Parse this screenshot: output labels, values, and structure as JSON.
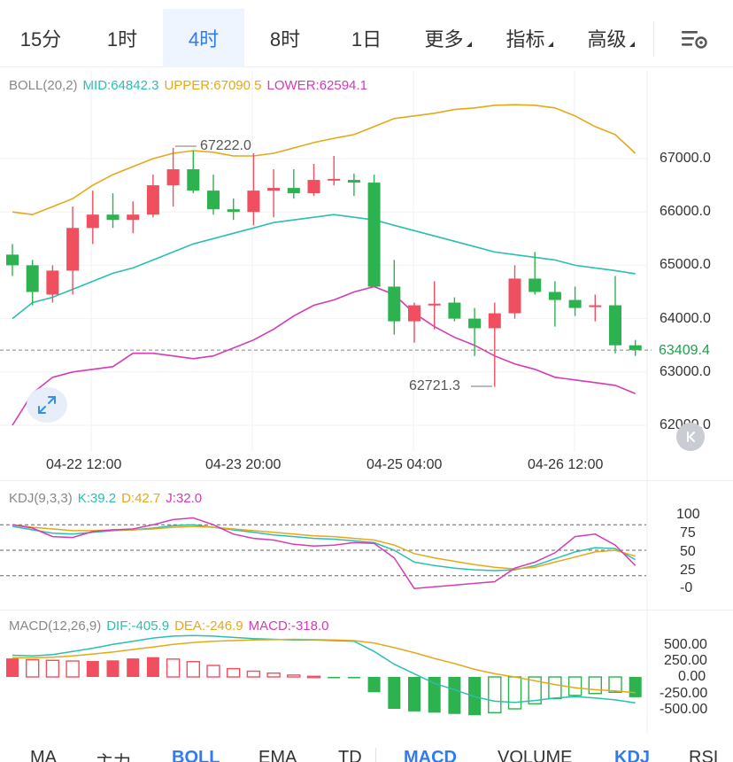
{
  "timeframes": {
    "tabs": [
      {
        "label": "15分"
      },
      {
        "label": "1时"
      },
      {
        "label": "4时"
      },
      {
        "label": "8时"
      },
      {
        "label": "1日"
      },
      {
        "label": "更多"
      },
      {
        "label": "指标"
      },
      {
        "label": "高级"
      }
    ],
    "active_index": 2
  },
  "boll_legend": {
    "name": "BOLL(20,2)",
    "mid": "MID:64842.3",
    "upper": "UPPER:67090.5",
    "lower": "LOWER:62594.1"
  },
  "price_axis": [
    "67000.0",
    "66000.0",
    "65000.0",
    "64000.0",
    "63000.0",
    "62000.0"
  ],
  "current_price": "63409.4",
  "annotations": {
    "high": "67222.0",
    "low": "62721.3"
  },
  "time_axis": [
    "04-22 12:00",
    "04-23 20:00",
    "04-25 04:00",
    "04-26 12:00"
  ],
  "kdj_legend": {
    "name": "KDJ(9,3,3)",
    "k": "K:39.2",
    "d": "D:42.7",
    "j": "J:32.0"
  },
  "kdj_axis": [
    "100",
    "75",
    "50",
    "25",
    "-0"
  ],
  "macd_legend": {
    "name": "MACD(12,26,9)",
    "dif": "DIF:-405.9",
    "dea": "DEA:-246.9",
    "macd": "MACD:-318.0"
  },
  "macd_axis": [
    "500.00",
    "250.00",
    "0.00",
    "-250.00",
    "-500.00"
  ],
  "indicator_tabs": [
    {
      "label": "MA"
    },
    {
      "label": "主力"
    },
    {
      "label": "BOLL"
    },
    {
      "label": "EMA"
    },
    {
      "label": "TD"
    },
    {
      "label": "MACD"
    },
    {
      "label": "VOLUME"
    },
    {
      "label": "KDJ"
    },
    {
      "label": "RSI"
    }
  ],
  "colors": {
    "up": "#ef4f5f",
    "down": "#2cb34f",
    "mid_line": "#2bbfb0",
    "upper_line": "#e6a817",
    "lower_line": "#d63ab4",
    "active": "#2f7bf5"
  },
  "icons": {
    "settings": "chart-settings-icon",
    "expand": "expand-icon",
    "collapse": "collapse-icon"
  },
  "chart_data": [
    {
      "type": "candlestick",
      "title": "BOLL(20,2)",
      "ylim": [
        61800,
        68000
      ],
      "candles": [
        {
          "o": 65200,
          "h": 65400,
          "l": 64800,
          "c": 65000
        },
        {
          "o": 65000,
          "h": 65100,
          "l": 64250,
          "c": 64500
        },
        {
          "o": 64450,
          "h": 65000,
          "l": 64300,
          "c": 64900
        },
        {
          "o": 64900,
          "h": 66100,
          "l": 64450,
          "c": 65700
        },
        {
          "o": 65700,
          "h": 66400,
          "l": 65400,
          "c": 65950
        },
        {
          "o": 65950,
          "h": 66350,
          "l": 65700,
          "c": 65850
        },
        {
          "o": 65850,
          "h": 66200,
          "l": 65600,
          "c": 65950
        },
        {
          "o": 65950,
          "h": 66700,
          "l": 65900,
          "c": 66500
        },
        {
          "o": 66500,
          "h": 67200,
          "l": 66100,
          "c": 66800
        },
        {
          "o": 66800,
          "h": 67150,
          "l": 66350,
          "c": 66400
        },
        {
          "o": 66400,
          "h": 66700,
          "l": 65950,
          "c": 66050
        },
        {
          "o": 66050,
          "h": 66250,
          "l": 65850,
          "c": 66000
        },
        {
          "o": 66000,
          "h": 67100,
          "l": 65750,
          "c": 66400
        },
        {
          "o": 66400,
          "h": 66800,
          "l": 65900,
          "c": 66450
        },
        {
          "o": 66450,
          "h": 66800,
          "l": 66250,
          "c": 66350
        },
        {
          "o": 66350,
          "h": 66900,
          "l": 66300,
          "c": 66600
        },
        {
          "o": 66600,
          "h": 67050,
          "l": 66500,
          "c": 66620
        },
        {
          "o": 66600,
          "h": 66720,
          "l": 66300,
          "c": 66550
        },
        {
          "o": 66550,
          "h": 66700,
          "l": 64600,
          "c": 64600
        },
        {
          "o": 64600,
          "h": 65100,
          "l": 63700,
          "c": 63950
        },
        {
          "o": 63950,
          "h": 64300,
          "l": 63550,
          "c": 64250
        },
        {
          "o": 64250,
          "h": 64700,
          "l": 63800,
          "c": 64280
        },
        {
          "o": 64300,
          "h": 64400,
          "l": 63950,
          "c": 64000
        },
        {
          "o": 64000,
          "h": 64200,
          "l": 63300,
          "c": 63820
        },
        {
          "o": 63820,
          "h": 64300,
          "l": 62721,
          "c": 64100
        },
        {
          "o": 64100,
          "h": 65000,
          "l": 64000,
          "c": 64750
        },
        {
          "o": 64750,
          "h": 65250,
          "l": 64450,
          "c": 64500
        },
        {
          "o": 64500,
          "h": 64700,
          "l": 63850,
          "c": 64350
        },
        {
          "o": 64350,
          "h": 64600,
          "l": 64050,
          "c": 64200
        },
        {
          "o": 64250,
          "h": 64450,
          "l": 63950,
          "c": 64250
        },
        {
          "o": 64250,
          "h": 64800,
          "l": 63350,
          "c": 63500
        },
        {
          "o": 63500,
          "h": 63600,
          "l": 63300,
          "c": 63409
        }
      ],
      "upper": [
        66000,
        65950,
        66100,
        66250,
        66500,
        66700,
        66850,
        67000,
        67100,
        67150,
        67120,
        67050,
        67050,
        67100,
        67200,
        67300,
        67380,
        67450,
        67600,
        67750,
        67800,
        67850,
        67920,
        67950,
        68000,
        68010,
        68000,
        67950,
        67800,
        67600,
        67450,
        67100
      ],
      "mid": [
        64000,
        64300,
        64400,
        64550,
        64700,
        64850,
        64950,
        65100,
        65250,
        65400,
        65500,
        65600,
        65700,
        65800,
        65850,
        65900,
        65950,
        65900,
        65850,
        65750,
        65650,
        65550,
        65450,
        65350,
        65250,
        65200,
        65150,
        65100,
        65000,
        64950,
        64900,
        64842
      ],
      "lower": [
        62000,
        62600,
        62900,
        63000,
        63050,
        63100,
        63350,
        63350,
        63300,
        63250,
        63300,
        63450,
        63600,
        63800,
        64050,
        64250,
        64350,
        64500,
        64600,
        64450,
        64100,
        63850,
        63650,
        63500,
        63300,
        63150,
        63050,
        62900,
        62850,
        62800,
        62750,
        62594
      ]
    },
    {
      "type": "line",
      "title": "KDJ(9,3,3)",
      "ylim": [
        -5,
        105
      ],
      "series": [
        {
          "name": "K",
          "values": [
            78,
            74,
            70,
            69,
            71,
            73,
            74,
            76,
            79,
            80,
            77,
            74,
            71,
            68,
            66,
            64,
            63,
            61,
            59,
            50,
            36,
            32,
            29,
            27,
            26,
            27,
            32,
            40,
            48,
            53,
            52,
            39
          ]
        },
        {
          "name": "D",
          "values": [
            80,
            77,
            75,
            73,
            73,
            74,
            74,
            75,
            77,
            78,
            77,
            75,
            73,
            71,
            69,
            67,
            66,
            64,
            62,
            56,
            46,
            41,
            37,
            33,
            30,
            28,
            30,
            36,
            42,
            48,
            50,
            43
          ]
        },
        {
          "name": "J",
          "values": [
            80,
            76,
            66,
            65,
            72,
            74,
            75,
            80,
            86,
            88,
            80,
            69,
            64,
            62,
            57,
            55,
            56,
            59,
            58,
            41,
            5,
            7,
            9,
            11,
            13,
            29,
            36,
            47,
            66,
            69,
            56,
            32
          ]
        }
      ]
    },
    {
      "type": "bar+line",
      "title": "MACD(12,26,9)",
      "ylim": [
        -650,
        800
      ],
      "histogram": [
        290,
        270,
        260,
        250,
        250,
        260,
        290,
        310,
        280,
        240,
        180,
        130,
        90,
        60,
        30,
        10,
        -5,
        -20,
        -240,
        -500,
        -540,
        -560,
        -580,
        -600,
        -560,
        -500,
        -420,
        -340,
        -290,
        -260,
        -240,
        -318
      ],
      "series": [
        {
          "name": "DIF",
          "values": [
            340,
            330,
            350,
            400,
            450,
            510,
            560,
            610,
            640,
            650,
            640,
            620,
            600,
            590,
            580,
            580,
            570,
            560,
            400,
            200,
            50,
            -100,
            -200,
            -310,
            -380,
            -400,
            -370,
            -330,
            -310,
            -330,
            -360,
            -406
          ]
        },
        {
          "name": "DEA",
          "values": [
            300,
            300,
            310,
            330,
            360,
            390,
            430,
            470,
            510,
            540,
            560,
            570,
            580,
            585,
            590,
            585,
            580,
            570,
            530,
            460,
            380,
            290,
            210,
            120,
            50,
            0,
            -60,
            -120,
            -170,
            -200,
            -220,
            -247
          ]
        }
      ]
    }
  ]
}
